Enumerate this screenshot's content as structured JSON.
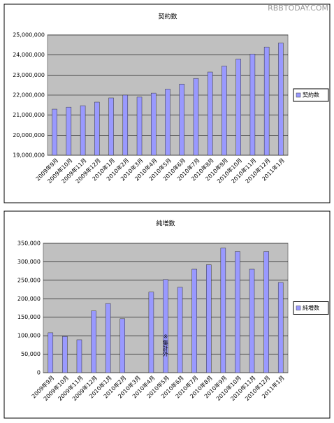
{
  "watermark": "RBBTODAY.COM",
  "chart_data": [
    {
      "type": "bar",
      "title": "契約数",
      "categories": [
        "2009年9月",
        "2009年10月",
        "2009年11月",
        "2009年12月",
        "2010年1月",
        "2010年2月",
        "2010年3月",
        "2010年4月",
        "2010年5月",
        "2010年6月",
        "2010年7月",
        "2010年8月",
        "2010年9月",
        "2010年10月",
        "2010年11月",
        "2010年12月",
        "2011年1月"
      ],
      "series": [
        {
          "name": "契約数",
          "color": "#9999ff",
          "values": [
            21300000,
            21400000,
            21470000,
            21650000,
            21860000,
            22000000,
            21900000,
            22100000,
            22300000,
            22550000,
            22830000,
            23150000,
            23450000,
            23800000,
            24050000,
            24400000,
            24600000
          ]
        }
      ],
      "ylim": [
        19000000,
        25000000
      ],
      "yticks": [
        {
          "value": 19000000,
          "label": "19,000,000"
        },
        {
          "value": 20000000,
          "label": "20,000,000"
        },
        {
          "value": 21000000,
          "label": "21,000,000"
        },
        {
          "value": 22000000,
          "label": "22,000,000"
        },
        {
          "value": 23000000,
          "label": "23,000,000"
        },
        {
          "value": 24000000,
          "label": "24,000,000"
        },
        {
          "value": 25000000,
          "label": "25,000,000"
        }
      ],
      "grid": true,
      "legend": "right"
    },
    {
      "type": "bar",
      "title": "純増数",
      "categories": [
        "2009年9月",
        "2009年10月",
        "2009年11月",
        "2009年12月",
        "2010年1月",
        "2010年2月",
        "2010年3月",
        "2010年4月",
        "2010年5月",
        "2010年6月",
        "2010年7月",
        "2010年8月",
        "2010年9月",
        "2010年10月",
        "2010年11月",
        "2010年12月",
        "2011年1月"
      ],
      "series": [
        {
          "name": "純増数",
          "color": "#9999ff",
          "values": [
            108000,
            98000,
            89000,
            167000,
            187000,
            146000,
            null,
            218000,
            252000,
            231000,
            280000,
            292000,
            337000,
            328000,
            280000,
            328000,
            244000
          ]
        }
      ],
      "ylim": [
        0,
        350000
      ],
      "yticks": [
        0,
        {
          "value": 50000,
          "label": "50,000"
        },
        {
          "value": 100000,
          "label": "100,000"
        },
        {
          "value": 150000,
          "label": "150,000"
        },
        {
          "value": 200000,
          "label": "200,000"
        },
        {
          "value": 250000,
          "label": "250,000"
        },
        {
          "value": 300000,
          "label": "300,000"
        },
        {
          "value": 350000,
          "label": "350,000"
        }
      ],
      "grid": true,
      "legend": "right",
      "annotation": "※集計外"
    }
  ]
}
